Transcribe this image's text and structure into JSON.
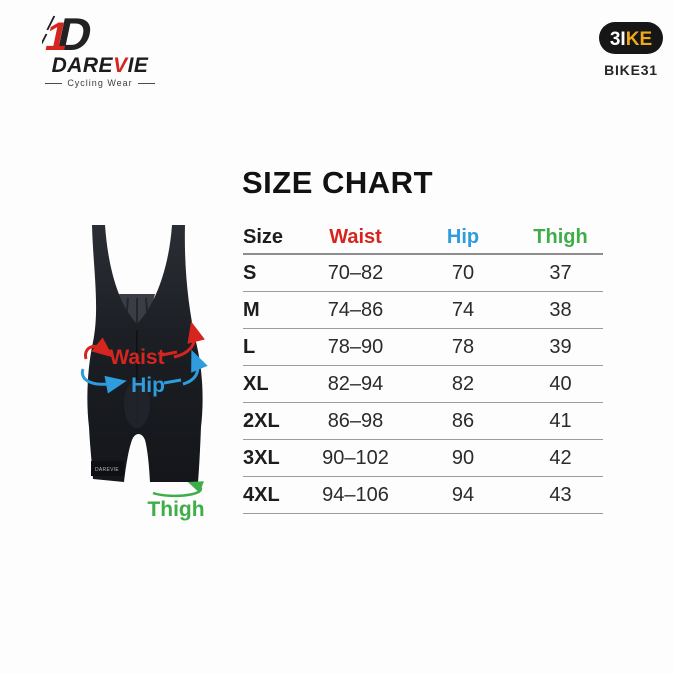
{
  "header": {
    "darevie": {
      "monogram_digit": "1",
      "monogram_letter": "D",
      "wordmark_left": "DARE",
      "wordmark_accent": "V",
      "wordmark_right": "IE",
      "tagline": "Cycling Wear"
    },
    "bike": {
      "badge_left": "3I",
      "badge_right": "KE",
      "code": "BIKE31"
    }
  },
  "title": "SIZE CHART",
  "chart_data": {
    "type": "table",
    "title": "SIZE CHART",
    "columns": [
      "Size",
      "Waist",
      "Hip",
      "Thigh"
    ],
    "column_colors": [
      "#1d1d1d",
      "#d6251f",
      "#2f9ddd",
      "#3fae49"
    ],
    "rows": [
      [
        "S",
        "70–82",
        "70",
        "37"
      ],
      [
        "M",
        "74–86",
        "74",
        "38"
      ],
      [
        "L",
        "78–90",
        "78",
        "39"
      ],
      [
        "XL",
        "82–94",
        "82",
        "40"
      ],
      [
        "2XL",
        "86–98",
        "86",
        "41"
      ],
      [
        "3XL",
        "90–102",
        "90",
        "42"
      ],
      [
        "4XL",
        "94–106",
        "94",
        "43"
      ]
    ]
  },
  "diagram": {
    "waist_label": "Waist",
    "hip_label": "Hip",
    "thigh_label": "Thigh",
    "waist_color": "#d6251f",
    "hip_color": "#2f9ddd",
    "thigh_color": "#3fae49",
    "cuff_logo": "DAREVIE"
  },
  "colors": {
    "accent_red": "#d6251f",
    "accent_blue": "#2f9ddd",
    "accent_green": "#3fae49",
    "badge_yellow": "#f2a71b",
    "table_line": "#9c9c9c",
    "garment_dark": "#1b1e23"
  }
}
